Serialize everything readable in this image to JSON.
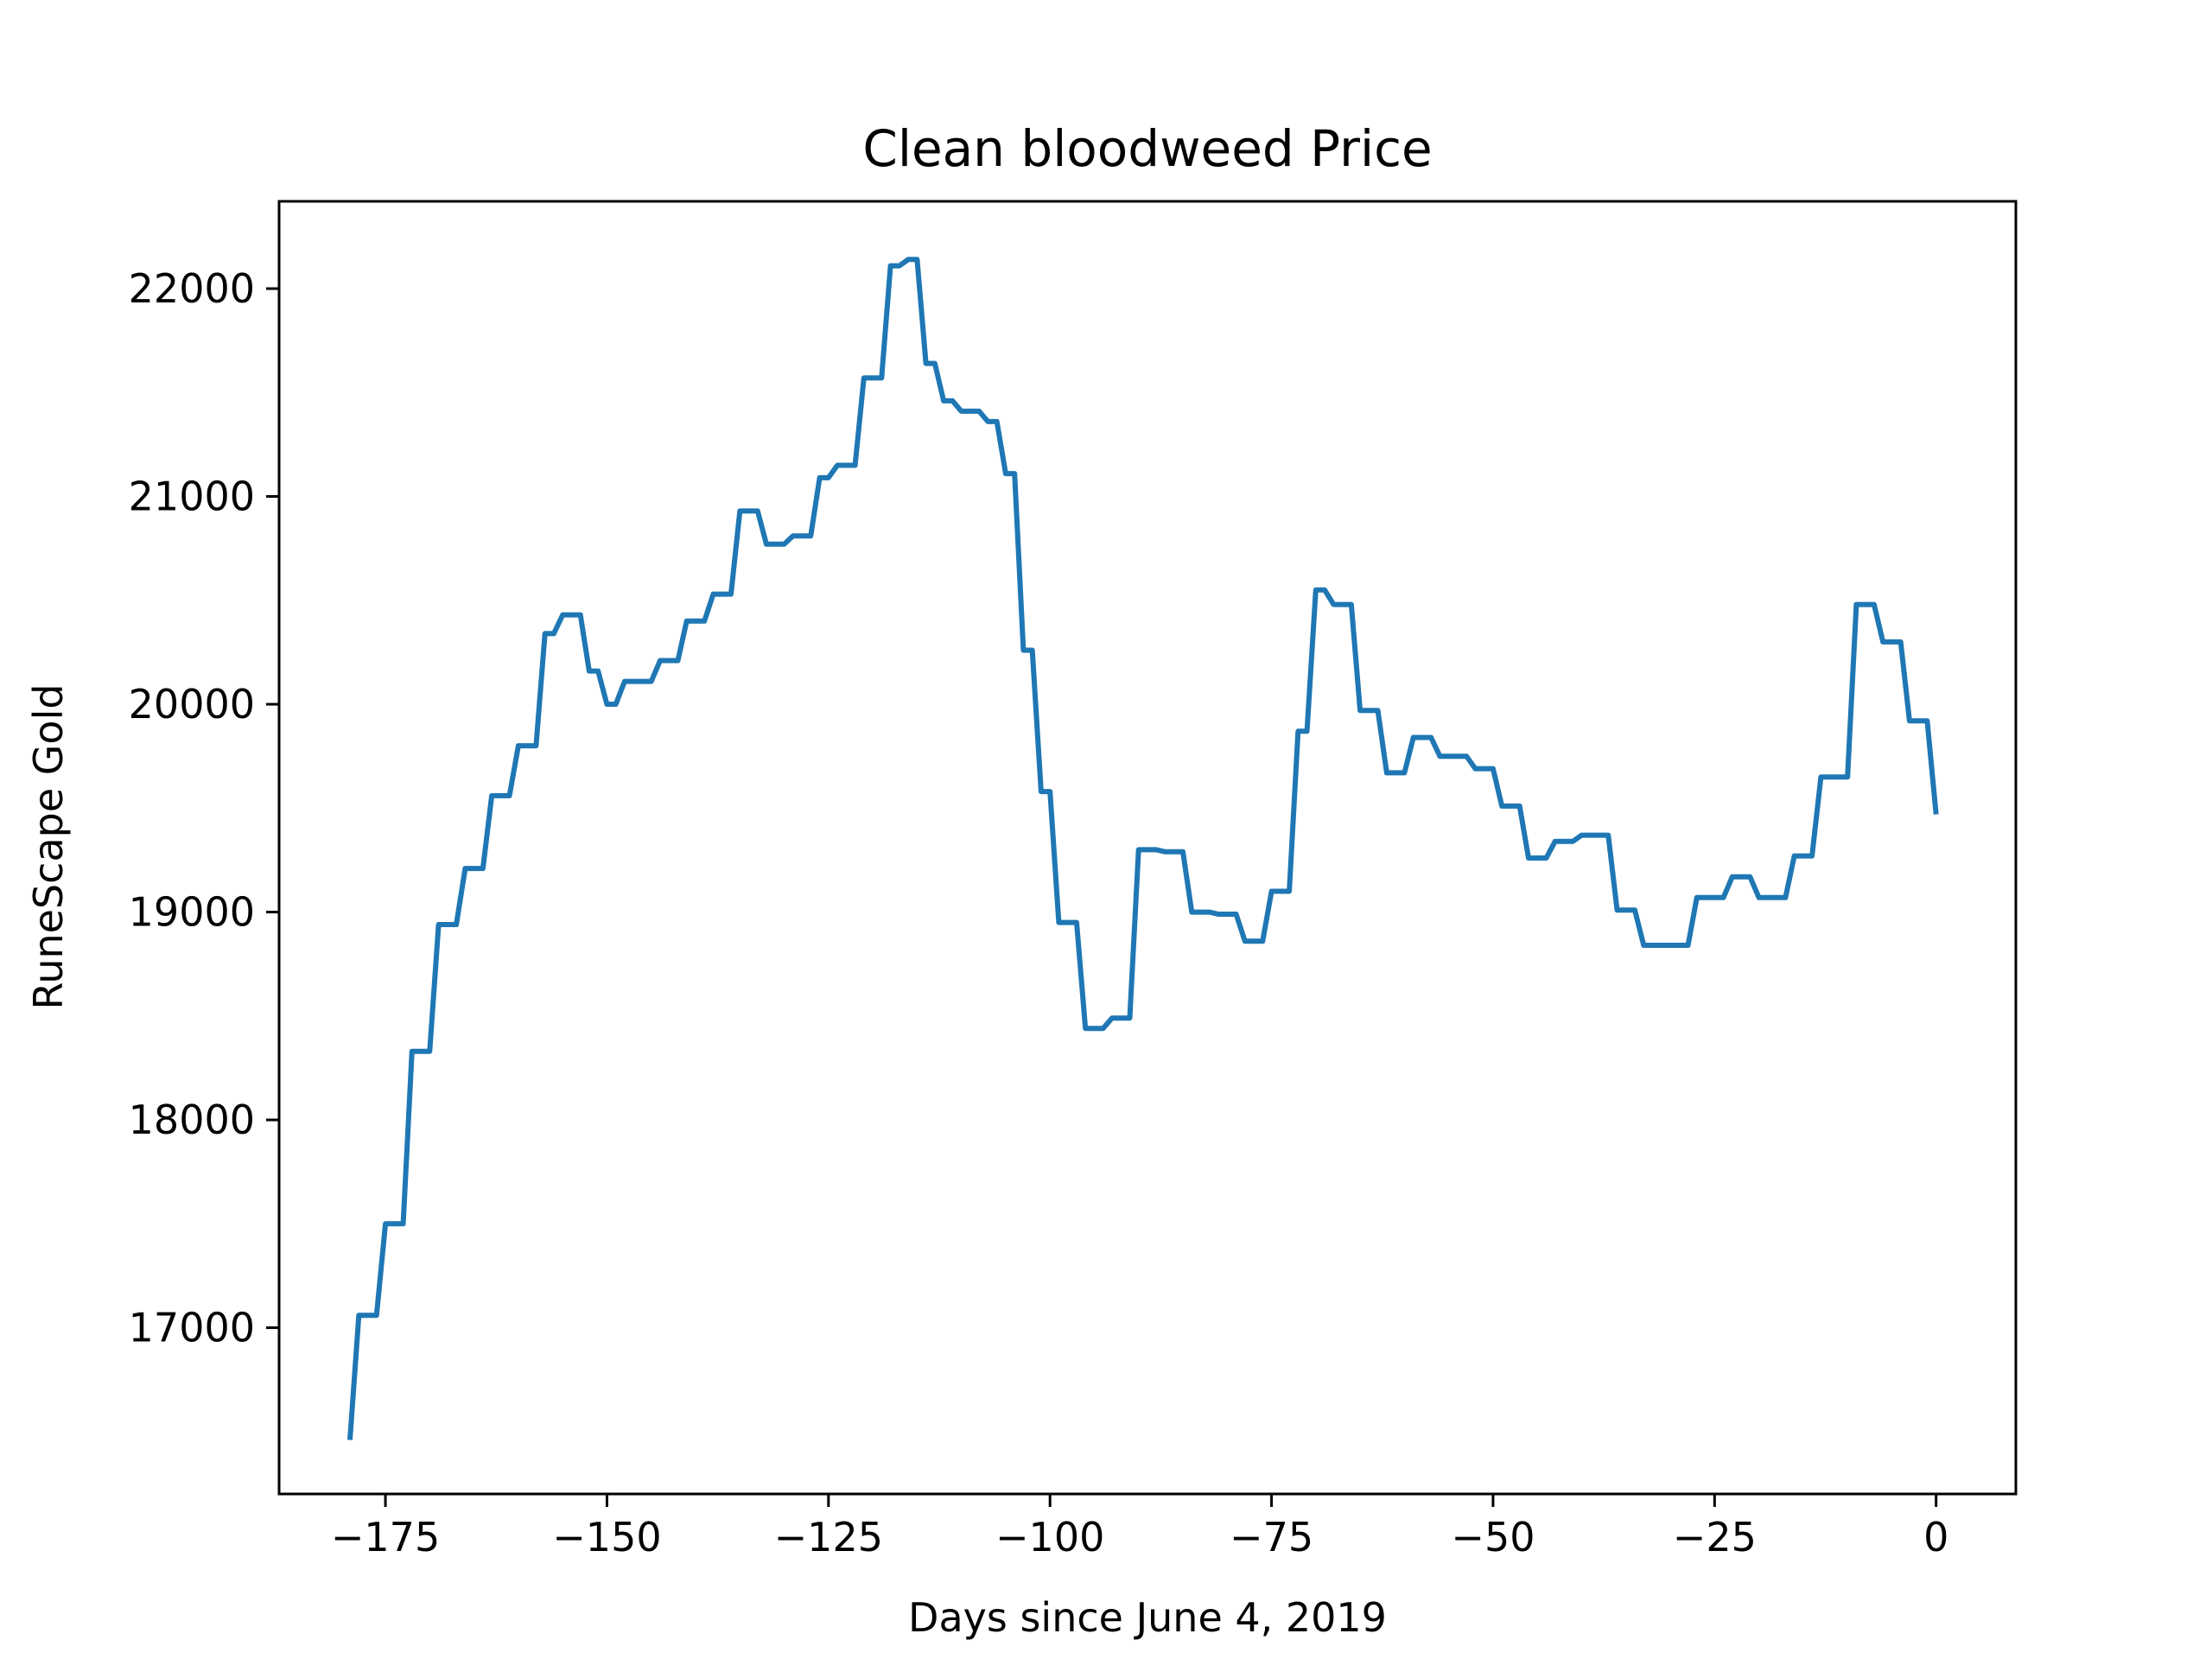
{
  "chart_data": {
    "type": "line",
    "title": "Clean bloodweed Price",
    "xlabel": "Days since June 4, 2019",
    "ylabel": "RuneScape Gold",
    "xlim": [
      -187,
      9
    ],
    "ylim": [
      16200,
      22420
    ],
    "x_ticks": [
      -175,
      -150,
      -125,
      -100,
      -75,
      -50,
      -25,
      0
    ],
    "y_ticks": [
      17000,
      18000,
      19000,
      20000,
      21000,
      22000
    ],
    "x_tick_labels": [
      "−175",
      "−150",
      "−125",
      "−100",
      "−75",
      "−50",
      "−25",
      "0"
    ],
    "y_tick_labels": [
      "17000",
      "18000",
      "19000",
      "20000",
      "21000",
      "22000"
    ],
    "grid": false,
    "line_color": "#1f77b4",
    "series": [
      {
        "x": [
          -179,
          -178,
          -177,
          -176,
          -175,
          -174,
          -173,
          -172,
          -171,
          -170,
          -169,
          -168,
          -167,
          -166,
          -165,
          -164,
          -163,
          -162,
          -161,
          -160,
          -159,
          -158,
          -157,
          -156,
          -155,
          -154,
          -153,
          -152,
          -151,
          -150,
          -149,
          -148,
          -147,
          -146,
          -145,
          -144,
          -143,
          -142,
          -141,
          -140,
          -139,
          -138,
          -137,
          -136,
          -135,
          -134,
          -133,
          -132,
          -131,
          -130,
          -129,
          -128,
          -127,
          -126,
          -125,
          -124,
          -123,
          -122,
          -121,
          -120,
          -119,
          -118,
          -117,
          -116,
          -115,
          -114,
          -113,
          -112,
          -111,
          -110,
          -109,
          -108,
          -107,
          -106,
          -105,
          -104,
          -103,
          -102,
          -101,
          -100,
          -99,
          -98,
          -97,
          -96,
          -95,
          -94,
          -93,
          -92,
          -91,
          -90,
          -89,
          -88,
          -87,
          -86,
          -85,
          -84,
          -83,
          -82,
          -81,
          -80,
          -79,
          -78,
          -77,
          -76,
          -75,
          -74,
          -73,
          -72,
          -71,
          -70,
          -69,
          -68,
          -67,
          -66,
          -65,
          -64,
          -63,
          -62,
          -61,
          -60,
          -59,
          -58,
          -57,
          -56,
          -55,
          -54,
          -53,
          -52,
          -51,
          -50,
          -49,
          -48,
          -47,
          -46,
          -45,
          -44,
          -43,
          -42,
          -41,
          -40,
          -39,
          -38,
          -37,
          -36,
          -35,
          -34,
          -33,
          -32,
          -31,
          -30,
          -29,
          -28,
          -27,
          -26,
          -25,
          -24,
          -23,
          -22,
          -21,
          -20,
          -19,
          -18,
          -17,
          -16,
          -15,
          -14,
          -13,
          -12,
          -11,
          -10,
          -9,
          -8,
          -7,
          -6,
          -5,
          -4,
          -3,
          -2,
          -1,
          0
        ],
        "y": [
          16460,
          17060,
          17060,
          17060,
          17500,
          17500,
          17500,
          18330,
          18330,
          18330,
          18940,
          18940,
          18940,
          19210,
          19210,
          19210,
          19560,
          19560,
          19560,
          19800,
          19800,
          19800,
          20340,
          20340,
          20430,
          20430,
          20430,
          20160,
          20160,
          20000,
          20000,
          20110,
          20110,
          20110,
          20110,
          20210,
          20210,
          20210,
          20400,
          20400,
          20400,
          20530,
          20530,
          20530,
          20930,
          20930,
          20930,
          20770,
          20770,
          20770,
          20810,
          20810,
          20810,
          21090,
          21090,
          21150,
          21150,
          21150,
          21570,
          21570,
          21570,
          22110,
          22110,
          22140,
          22140,
          21640,
          21640,
          21460,
          21460,
          21410,
          21410,
          21410,
          21360,
          21360,
          21110,
          21110,
          20260,
          20260,
          19580,
          19580,
          18950,
          18950,
          18950,
          18440,
          18440,
          18440,
          18490,
          18490,
          18490,
          19300,
          19300,
          19300,
          19290,
          19290,
          19290,
          19000,
          19000,
          19000,
          18990,
          18990,
          18990,
          18860,
          18860,
          18860,
          19100,
          19100,
          19100,
          19870,
          19870,
          20550,
          20550,
          20480,
          20480,
          20480,
          19970,
          19970,
          19970,
          19670,
          19670,
          19670,
          19840,
          19840,
          19840,
          19750,
          19750,
          19750,
          19750,
          19690,
          19690,
          19690,
          19510,
          19510,
          19510,
          19260,
          19260,
          19260,
          19340,
          19340,
          19340,
          19370,
          19370,
          19370,
          19370,
          19010,
          19010,
          19010,
          18840,
          18840,
          18840,
          18840,
          18840,
          18840,
          19070,
          19070,
          19070,
          19070,
          19170,
          19170,
          19170,
          19070,
          19070,
          19070,
          19070,
          19270,
          19270,
          19270,
          19650,
          19650,
          19650,
          19650,
          20480,
          20480,
          20480,
          20300,
          20300,
          20300,
          19920,
          19920,
          19920,
          19470
        ]
      }
    ]
  }
}
